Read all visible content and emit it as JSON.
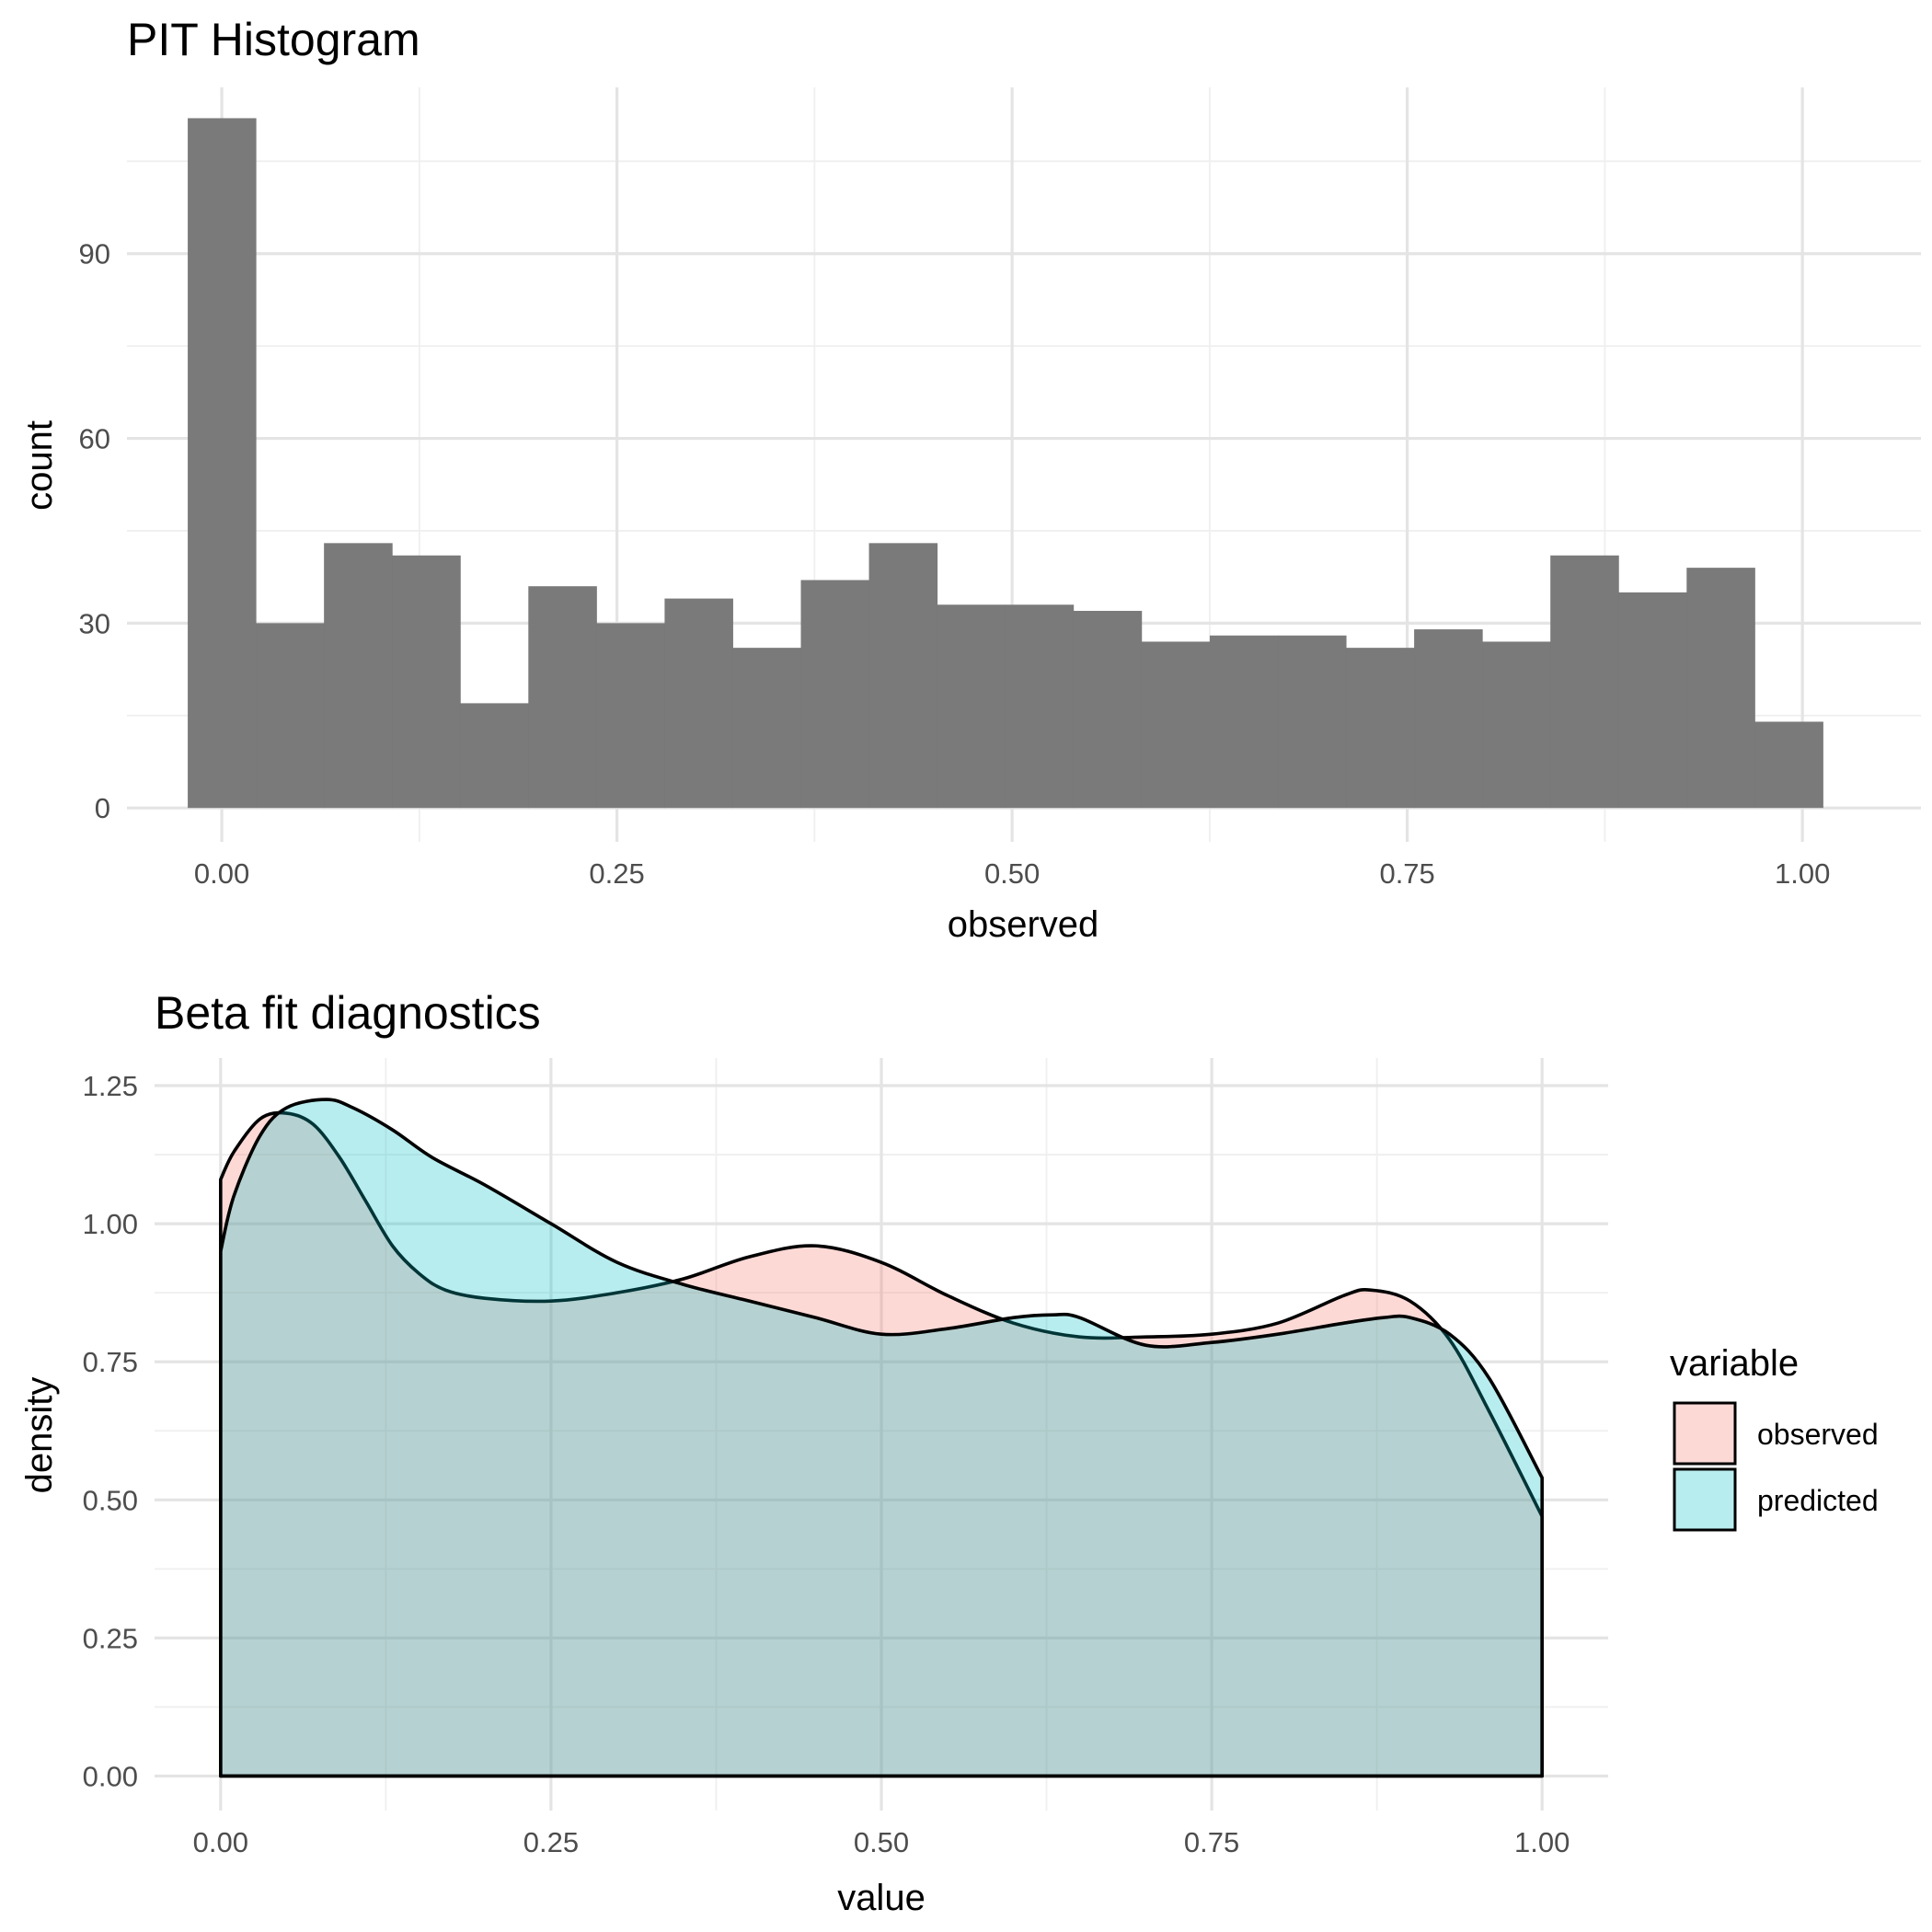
{
  "chart_data": [
    {
      "type": "bar",
      "title": "PIT Histogram",
      "xlabel": "observed",
      "ylabel": "count",
      "xlim": [
        -0.06,
        1.075
      ],
      "ylim": [
        -5.5,
        117
      ],
      "x_ticks": [
        "0.00",
        "0.25",
        "0.50",
        "0.75",
        "1.00"
      ],
      "y_ticks": [
        "0",
        "30",
        "60",
        "90"
      ],
      "bin_width": 0.0431,
      "bar_color": "#777777",
      "bins": [
        {
          "center": 0.0,
          "count": 112
        },
        {
          "center": 0.0431,
          "count": 30
        },
        {
          "center": 0.0862,
          "count": 43
        },
        {
          "center": 0.1293,
          "count": 41
        },
        {
          "center": 0.1724,
          "count": 17
        },
        {
          "center": 0.2155,
          "count": 36
        },
        {
          "center": 0.2586,
          "count": 30
        },
        {
          "center": 0.3017,
          "count": 34
        },
        {
          "center": 0.3448,
          "count": 26
        },
        {
          "center": 0.3879,
          "count": 37
        },
        {
          "center": 0.431,
          "count": 43
        },
        {
          "center": 0.4741,
          "count": 33
        },
        {
          "center": 0.5172,
          "count": 33
        },
        {
          "center": 0.5603,
          "count": 32
        },
        {
          "center": 0.6034,
          "count": 27
        },
        {
          "center": 0.6466,
          "count": 28
        },
        {
          "center": 0.6897,
          "count": 28
        },
        {
          "center": 0.7328,
          "count": 26
        },
        {
          "center": 0.7759,
          "count": 29
        },
        {
          "center": 0.819,
          "count": 27
        },
        {
          "center": 0.8621,
          "count": 41
        },
        {
          "center": 0.9052,
          "count": 35
        },
        {
          "center": 0.9483,
          "count": 39
        },
        {
          "center": 0.9914,
          "count": 14
        }
      ]
    },
    {
      "type": "area",
      "title": "Beta fit diagnostics",
      "xlabel": "value",
      "ylabel": "density",
      "xlim": [
        -0.05,
        1.05
      ],
      "ylim": [
        -0.0625,
        1.3
      ],
      "x_ticks": [
        "0.00",
        "0.25",
        "0.50",
        "0.75",
        "1.00"
      ],
      "y_ticks": [
        "0.00",
        "0.25",
        "0.50",
        "0.75",
        "1.00",
        "1.25"
      ],
      "grid": true,
      "legend": {
        "title": "variable",
        "position": "right",
        "entries": [
          {
            "label": "observed",
            "color": "#f8766d"
          },
          {
            "label": "predicted",
            "color": "#00bfc4"
          }
        ]
      },
      "series": [
        {
          "name": "observed",
          "color": "#f8766d",
          "x": [
            0.0,
            0.01,
            0.03,
            0.05,
            0.07,
            0.09,
            0.11,
            0.13,
            0.15,
            0.17,
            0.2,
            0.25,
            0.3,
            0.35,
            0.4,
            0.45,
            0.5,
            0.55,
            0.6,
            0.65,
            0.7,
            0.75,
            0.8,
            0.85,
            0.87,
            0.9,
            0.93,
            0.96,
            1.0
          ],
          "y": [
            1.08,
            1.13,
            1.19,
            1.2,
            1.18,
            1.12,
            1.04,
            0.96,
            0.91,
            0.88,
            0.865,
            0.86,
            0.875,
            0.9,
            0.94,
            0.96,
            0.93,
            0.87,
            0.82,
            0.795,
            0.795,
            0.8,
            0.82,
            0.87,
            0.88,
            0.86,
            0.79,
            0.66,
            0.47
          ]
        },
        {
          "name": "predicted",
          "color": "#00bfc4",
          "x": [
            0.0,
            0.01,
            0.03,
            0.05,
            0.08,
            0.1,
            0.13,
            0.16,
            0.2,
            0.25,
            0.3,
            0.35,
            0.4,
            0.45,
            0.5,
            0.55,
            0.6,
            0.63,
            0.65,
            0.7,
            0.75,
            0.8,
            0.85,
            0.88,
            0.9,
            0.93,
            0.96,
            1.0
          ],
          "y": [
            0.95,
            1.05,
            1.16,
            1.21,
            1.225,
            1.21,
            1.17,
            1.12,
            1.07,
            1.0,
            0.93,
            0.89,
            0.86,
            0.83,
            0.8,
            0.81,
            0.83,
            0.835,
            0.83,
            0.78,
            0.785,
            0.8,
            0.82,
            0.83,
            0.83,
            0.8,
            0.72,
            0.54
          ]
        }
      ]
    }
  ]
}
